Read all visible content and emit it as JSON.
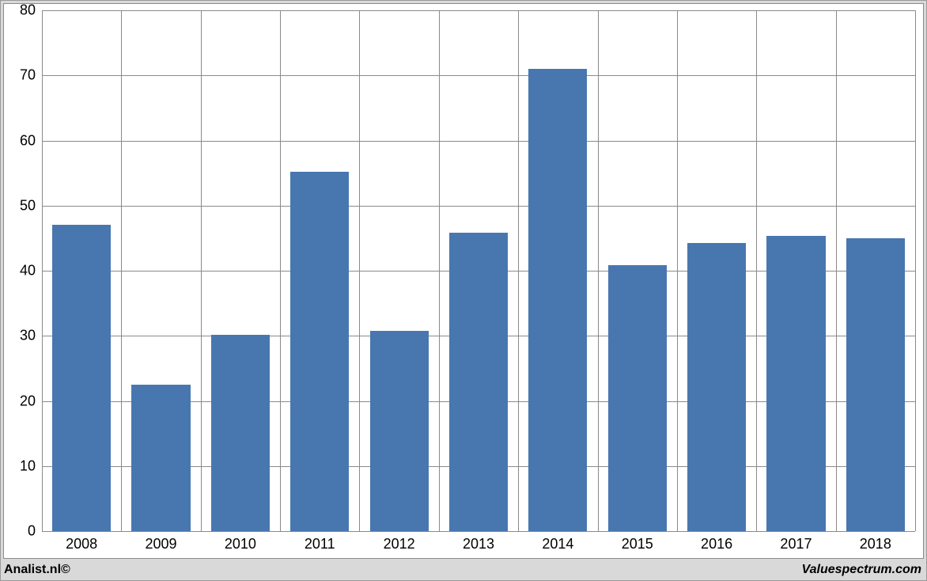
{
  "chart": {
    "type": "bar",
    "background_color": "#ffffff",
    "outer_background_color": "#d9d9d9",
    "grid_color": "#8a8a8a",
    "border_color": "#8a8a8a",
    "bar_color": "#4877af",
    "bar_width_ratio": 0.74,
    "ylim": [
      0,
      80
    ],
    "ytick_step": 10,
    "yticks": [
      "0",
      "10",
      "20",
      "30",
      "40",
      "50",
      "60",
      "70",
      "80"
    ],
    "categories": [
      "2008",
      "2009",
      "2010",
      "2011",
      "2012",
      "2013",
      "2014",
      "2015",
      "2016",
      "2017",
      "2018"
    ],
    "values": [
      47,
      22.5,
      30.2,
      55.2,
      30.8,
      45.8,
      71,
      40.8,
      44.3,
      45.4,
      45.0
    ],
    "tick_fontsize": 18,
    "tick_color": "#000000"
  },
  "footer": {
    "left": "Analist.nl©",
    "right": "Valuespectrum.com",
    "fontsize": 16,
    "color": "#000000"
  }
}
